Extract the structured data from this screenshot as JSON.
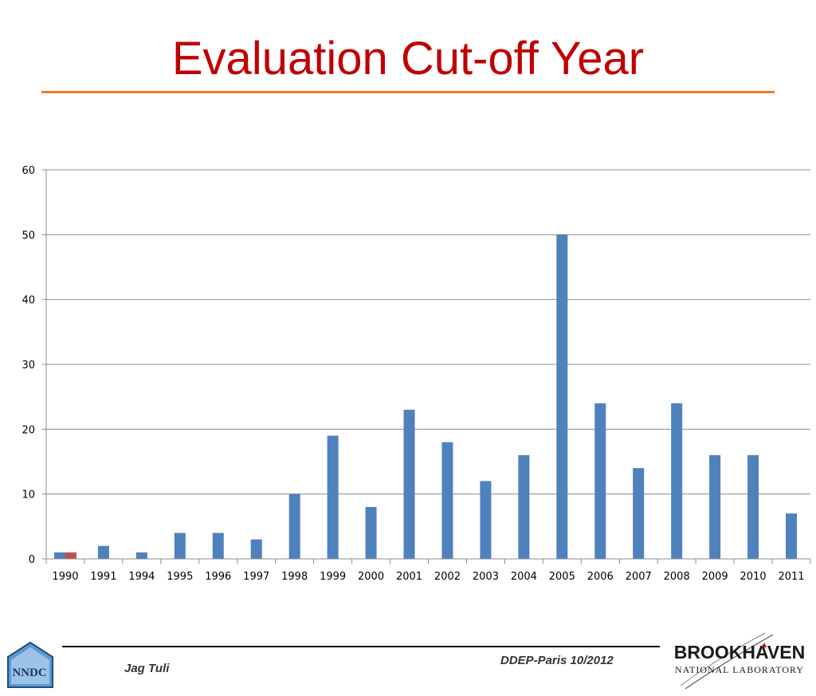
{
  "slide": {
    "title": "Evaluation Cut-off Year",
    "title_color": "#c00000",
    "rule_color": "#f07a28"
  },
  "footer": {
    "author": "Jag Tuli",
    "event": "DDEP-Paris 10/2012",
    "left_logo_text": "NNDC",
    "right_logo_line1": "BROOKHAVEN",
    "right_logo_line2": "NATIONAL LABORATORY"
  },
  "chart_data": {
    "type": "bar",
    "categories": [
      "1990",
      "1991",
      "1994",
      "1995",
      "1996",
      "1997",
      "1998",
      "1999",
      "2000",
      "2001",
      "2002",
      "2003",
      "2004",
      "2005",
      "2006",
      "2007",
      "2008",
      "2009",
      "2010",
      "2011"
    ],
    "series": [
      {
        "values": [
          1,
          2,
          1,
          4,
          4,
          3,
          10,
          19,
          8,
          23,
          18,
          12,
          16,
          50,
          24,
          14,
          24,
          16,
          16,
          7
        ],
        "color": "#4f81bd"
      },
      {
        "values": [
          1,
          null,
          null,
          null,
          null,
          null,
          null,
          null,
          null,
          null,
          null,
          null,
          null,
          null,
          null,
          null,
          null,
          null,
          null,
          null
        ],
        "color": "#c0504d"
      }
    ],
    "ylim": [
      0,
      60
    ],
    "yticks": [
      0,
      10,
      20,
      30,
      40,
      50,
      60
    ],
    "grid": true,
    "legend": "none"
  }
}
